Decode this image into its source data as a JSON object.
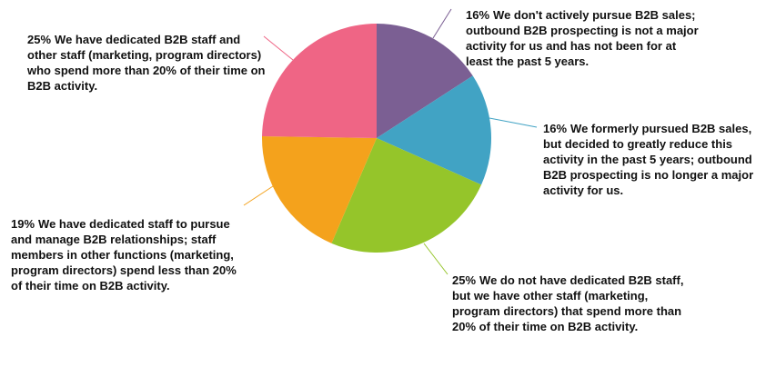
{
  "chart_data": {
    "type": "pie",
    "categories": [
      "We don't actively pursue B2B sales; outbound B2B prospecting is not a major activity for us and has not been for at least the past 5 years.",
      "We formerly pursued B2B sales, but decided to greatly reduce this activity in the past 5 years; outbound B2B prospecting is no longer a major activity for us.",
      "We do not have dedicated B2B staff, but we have other staff (marketing, program directors) that spend more than 20% of their time on B2B activity.",
      "We have dedicated staff to pursue and manage B2B relationships; staff members in other functions (marketing, program directors) spend less than 20% of their time on B2B activity.",
      "We have dedicated B2B staff and other staff (marketing, program directors) who spend more than 20% of their time on B2B activity."
    ],
    "values": [
      16,
      16,
      25,
      19,
      25
    ],
    "value_labels": [
      "16%",
      "16%",
      "25%",
      "19%",
      "25%"
    ],
    "colors": [
      "#7b5f93",
      "#41a3c4",
      "#95c52a",
      "#f4a21c",
      "#ef6585"
    ]
  }
}
